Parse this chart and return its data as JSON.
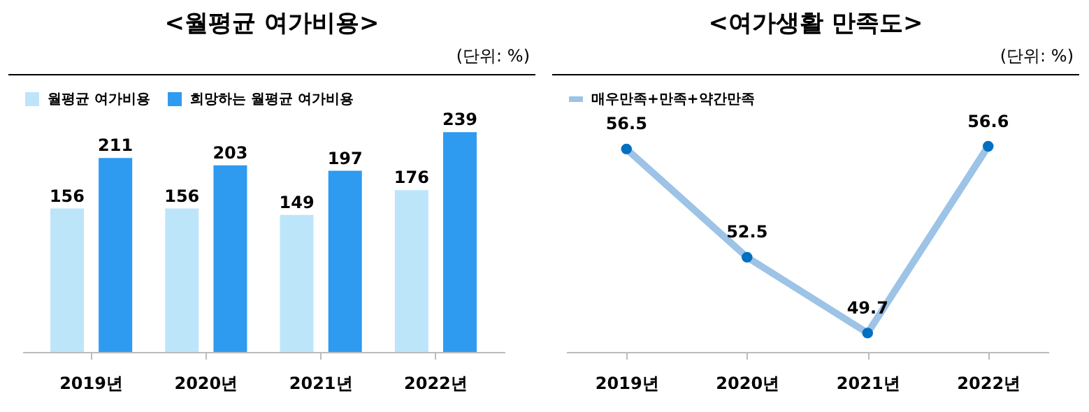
{
  "chart_data": [
    {
      "type": "bar",
      "title": "<월평균 여가비용>",
      "annotations": [
        "(단위: %)"
      ],
      "categories": [
        "2019년",
        "2020년",
        "2021년",
        "2022년"
      ],
      "series": [
        {
          "name": "월평균 여가비용",
          "color": "#bde5fa",
          "values": [
            156,
            156,
            149,
            176
          ]
        },
        {
          "name": "희망하는 월평균 여가비용",
          "color": "#2e9af0",
          "values": [
            211,
            203,
            197,
            239
          ]
        }
      ],
      "data_labels": true,
      "legend": "top",
      "tick_labels": "x",
      "grid": false
    },
    {
      "type": "line",
      "title": "<여가생활 만족도>",
      "annotations": [
        "(단위: %)"
      ],
      "categories": [
        "2019년",
        "2020년",
        "2021년",
        "2022년"
      ],
      "series": [
        {
          "name": "매우만족+만족+약간만족",
          "color": "#9dc3e6",
          "values": [
            56.5,
            52.5,
            49.7,
            56.6
          ]
        }
      ],
      "data_labels": true,
      "legend": "top",
      "tick_labels": "x",
      "grid": false,
      "marker": "circle",
      "line_style": "solid"
    }
  ]
}
